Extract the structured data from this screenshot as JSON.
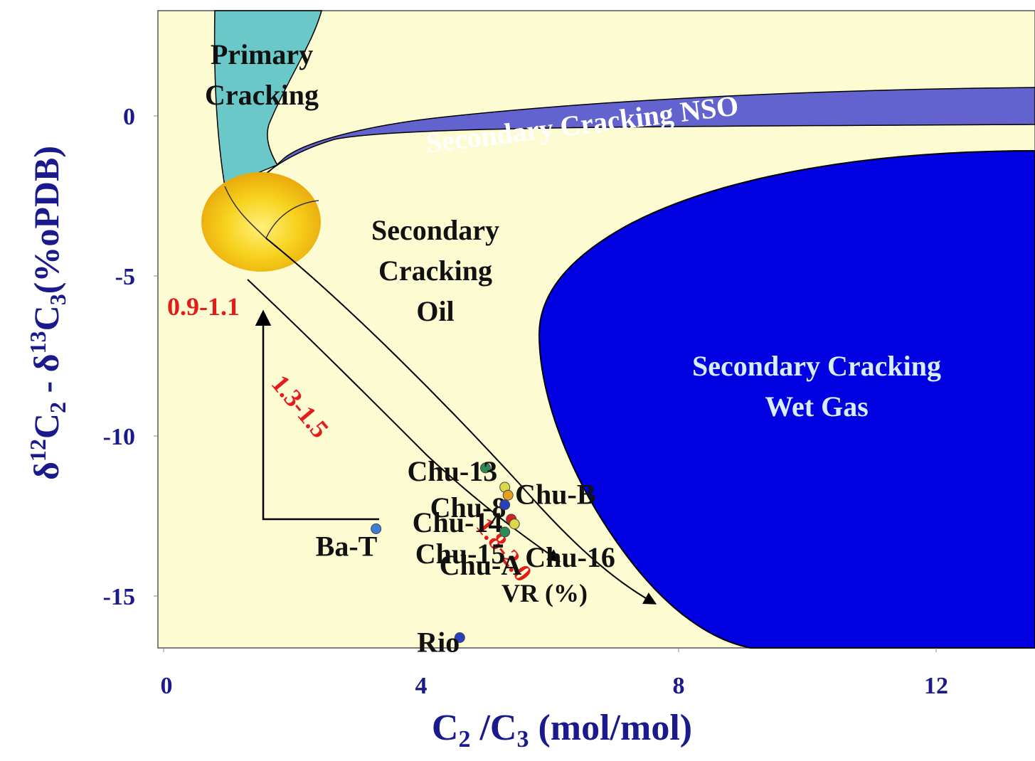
{
  "chart_data": {
    "type": "scatter",
    "x_axis": {
      "label_main": "C",
      "label_sub1": "2",
      "label_mid": " /C",
      "label_sub2": "3",
      "label_unit": " (mol/mol)",
      "ticks": [
        "0",
        "4",
        "8",
        "12"
      ],
      "range": [
        0,
        13.5
      ]
    },
    "y_axis": {
      "label_delta1": "δ",
      "label_sup1": "12",
      "label_c2": "C",
      "label_sub_c2": "2",
      "label_minus": " - δ",
      "label_sup2": "13",
      "label_c3": "C",
      "label_sub_c3": "3",
      "label_unit": "(%oPDB)",
      "ticks": [
        "0",
        "-5",
        "-10",
        "-15"
      ],
      "range": [
        -16.7,
        3.3
      ]
    },
    "regions": {
      "primary_cracking": [
        "Primary",
        "Cracking"
      ],
      "secondary_nso": "Secondary Cracking NSO",
      "secondary_oil": [
        "Secondary",
        "Cracking",
        "Oil"
      ],
      "secondary_wet_gas": [
        "Secondary Cracking",
        "Wet Gas"
      ]
    },
    "vr_labels": {
      "vr_09_11": "0.9-1.1",
      "vr_13_15": "1.3-1.5",
      "vr_18_20": "1.8-2.0",
      "vr_unit": "VR (%)"
    },
    "series": [
      {
        "points": [
          {
            "label": "Chu-13",
            "x": 5.0,
            "y": -11.0,
            "color": "#2e8b57"
          },
          {
            "label": "Chu-8",
            "x": 5.3,
            "y": -11.6,
            "color": "#d9d94a"
          },
          {
            "label": "Chu-B",
            "x": 5.35,
            "y": -11.85,
            "color": "#e3a020"
          },
          {
            "label": "Chu-14",
            "x": 5.3,
            "y": -12.15,
            "color": "#2a3fbf"
          },
          {
            "label": "Chu-15",
            "x": 5.4,
            "y": -12.6,
            "color": "#d42020"
          },
          {
            "label": "Chu-16",
            "x": 5.45,
            "y": -12.75,
            "color": "#d9d94a"
          },
          {
            "label": "Chu-A",
            "x": 5.3,
            "y": -13.0,
            "color": "#2e8b57"
          },
          {
            "label": "Ba-T",
            "x": 3.3,
            "y": -12.9,
            "color": "#3a7fd5"
          },
          {
            "label": "Rio",
            "x": 4.6,
            "y": -16.3,
            "color": "#2a3fbf"
          }
        ]
      }
    ],
    "colors": {
      "plot_background": "#fdfbd1",
      "primary_cracking": "#6ac8c8",
      "secondary_nso": "#6363cf",
      "secondary_wet_gas": "#0000e0",
      "maturity_circle": "#f5c518",
      "axis_text": "#1a1a8c",
      "vr_text": "#e31b1b"
    },
    "grid": false
  }
}
